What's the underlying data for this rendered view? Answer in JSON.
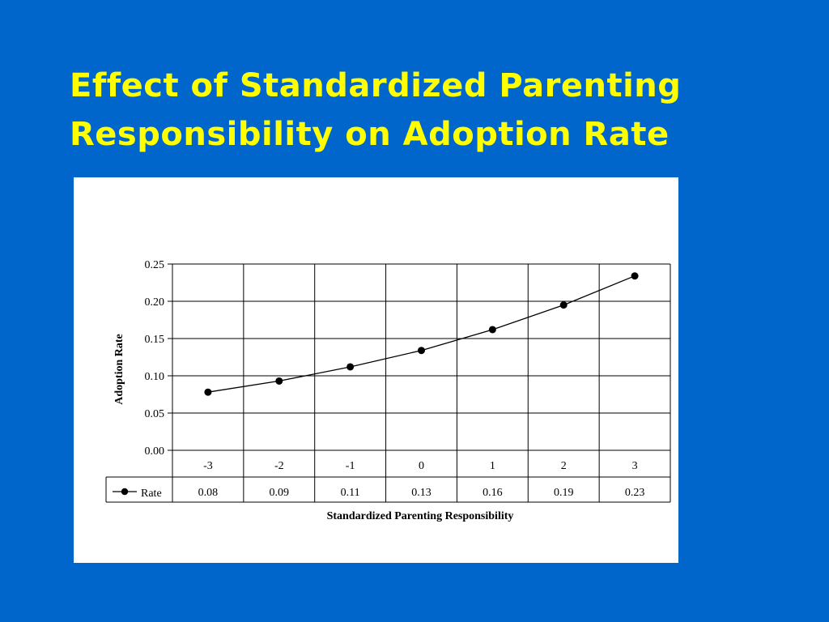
{
  "slide": {
    "title_line1": "Effect of Standardized Parenting",
    "title_line2": "Responsibility on Adoption Rate"
  },
  "colors": {
    "background": "#0066cc",
    "title": "#ffff00",
    "panel": "#ffffff",
    "series": "#000000"
  },
  "chart_data": {
    "type": "line",
    "title": "",
    "xlabel": "Standardized Parenting Responsibility",
    "ylabel": "Adoption Rate",
    "categories": [
      "-3",
      "-2",
      "-1",
      "0",
      "1",
      "2",
      "3"
    ],
    "series": [
      {
        "name": "Rate",
        "values": [
          0.078,
          0.093,
          0.112,
          0.134,
          0.162,
          0.195,
          0.234
        ],
        "labels": [
          "0.08",
          "0.09",
          "0.11",
          "0.13",
          "0.16",
          "0.19",
          "0.23"
        ]
      }
    ],
    "ylim": [
      0,
      0.25
    ],
    "yticks": [
      "0.00",
      "0.05",
      "0.10",
      "0.15",
      "0.20",
      "0.25"
    ],
    "grid": true,
    "legend": "data-table-bottom-left",
    "marker": "circle"
  }
}
